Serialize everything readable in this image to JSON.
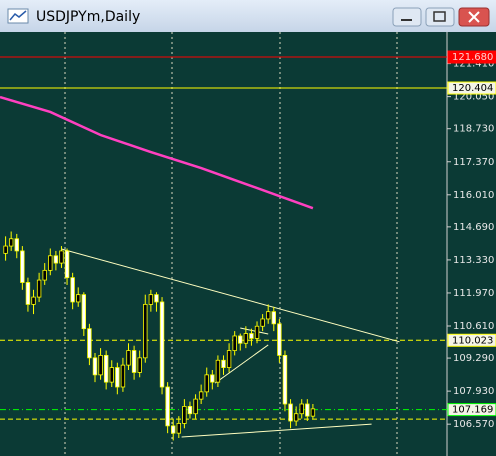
{
  "window": {
    "title": "USDJPYm,Daily"
  },
  "chart_data": {
    "type": "candlestick",
    "xlim": [
      -1,
      79
    ],
    "ylim": [
      105.26,
      122.71
    ],
    "yticks": [
      {
        "value": 121.41,
        "label": "121.410"
      },
      {
        "value": 120.05,
        "label": "120.050"
      },
      {
        "value": 118.73,
        "label": "118.730"
      },
      {
        "value": 117.37,
        "label": "117.370"
      },
      {
        "value": 116.01,
        "label": "116.010"
      },
      {
        "value": 114.69,
        "label": "114.690"
      },
      {
        "value": 113.33,
        "label": "113.330"
      },
      {
        "value": 111.97,
        "label": "111.970"
      },
      {
        "value": 110.61,
        "label": "110.610"
      },
      {
        "value": 109.29,
        "label": "109.290"
      },
      {
        "value": 107.93,
        "label": "107.930"
      },
      {
        "value": 106.57,
        "label": "106.570"
      }
    ],
    "candle_color": "#ffff00",
    "open": [
      113.6,
      113.9,
      114.2,
      113.7,
      112.4,
      111.5,
      111.8,
      112.5,
      112.9,
      113.5,
      113.2,
      113.7,
      112.6,
      111.6,
      111.9,
      110.5,
      109.3,
      108.6,
      109.4,
      108.3,
      108.9,
      108.1,
      109.0,
      109.6,
      108.7,
      109.3,
      111.5,
      111.9,
      111.6,
      108.1,
      106.5,
      106.2,
      106.6,
      107.3,
      107.0,
      107.6,
      107.9,
      108.6,
      108.3,
      109.2,
      108.9,
      109.6,
      110.2,
      109.9,
      110.3,
      110.1,
      110.6,
      110.9,
      111.2,
      110.7,
      109.4,
      107.4,
      106.7,
      107.0,
      107.4,
      106.9
    ],
    "high": [
      114.3,
      114.5,
      114.4,
      113.9,
      112.6,
      112.1,
      112.8,
      113.2,
      113.8,
      113.7,
      113.9,
      113.8,
      112.8,
      112.2,
      112.0,
      110.7,
      109.5,
      109.7,
      109.6,
      109.2,
      109.1,
      109.3,
      109.9,
      109.8,
      109.6,
      111.9,
      112.1,
      112.0,
      111.8,
      108.3,
      106.8,
      106.9,
      107.6,
      107.5,
      107.8,
      108.2,
      108.9,
      108.8,
      109.4,
      109.4,
      109.9,
      110.4,
      110.3,
      110.6,
      110.5,
      110.8,
      111.1,
      111.5,
      111.4,
      110.9,
      109.6,
      107.6,
      107.3,
      107.6,
      107.6,
      107.4
    ],
    "low": [
      113.3,
      113.7,
      113.4,
      112.1,
      111.2,
      111.1,
      111.6,
      112.3,
      112.7,
      112.9,
      113.0,
      112.3,
      111.3,
      111.4,
      110.2,
      109.0,
      108.3,
      108.4,
      108.0,
      108.1,
      107.8,
      107.9,
      108.8,
      108.4,
      108.5,
      109.1,
      111.2,
      111.2,
      107.8,
      106.2,
      105.9,
      106.0,
      106.4,
      106.8,
      106.8,
      107.4,
      107.7,
      108.0,
      108.1,
      108.6,
      108.7,
      109.4,
      109.6,
      109.7,
      109.8,
      109.9,
      110.4,
      110.7,
      110.4,
      109.1,
      107.1,
      106.4,
      106.5,
      106.8,
      106.7,
      106.8
    ],
    "close": [
      113.9,
      114.2,
      113.7,
      112.4,
      111.5,
      111.8,
      112.5,
      112.9,
      113.5,
      113.2,
      113.7,
      112.6,
      111.6,
      111.9,
      110.5,
      109.3,
      108.6,
      109.4,
      108.3,
      108.9,
      108.1,
      109.0,
      109.6,
      108.7,
      109.3,
      111.5,
      111.9,
      111.6,
      108.1,
      106.5,
      106.2,
      106.6,
      107.3,
      107.0,
      107.6,
      107.9,
      108.6,
      108.3,
      109.2,
      108.9,
      109.6,
      110.2,
      109.9,
      110.3,
      110.1,
      110.6,
      110.9,
      111.2,
      110.7,
      109.4,
      107.4,
      106.7,
      107.0,
      107.4,
      106.9,
      107.2
    ],
    "moving_average": {
      "color": "#ff40c0",
      "x": [
        -1,
        8,
        17,
        26,
        35,
        44,
        55
      ],
      "values": [
        120.03,
        119.42,
        118.47,
        117.77,
        117.11,
        116.37,
        115.46
      ]
    },
    "trendlines": [
      {
        "color": "#ffffc0",
        "x": [
          10,
          70.5
        ],
        "values": [
          113.78,
          109.96
        ]
      },
      {
        "color": "#ffffc0",
        "x": [
          31.5,
          65.5
        ],
        "values": [
          106.04,
          106.57
        ]
      },
      {
        "color": "#ffffc0",
        "x": [
          37.5,
          47
        ],
        "values": [
          108.26,
          109.83
        ]
      },
      {
        "color": "#ffffc0",
        "x": [
          42,
          47
        ],
        "values": [
          110.53,
          110.28
        ]
      }
    ],
    "levels": [
      {
        "value": 121.68,
        "label": "121.680",
        "color": "#ff0000",
        "style": "solid"
      },
      {
        "value": 120.404,
        "label": "120.404",
        "color": "#ffff00",
        "style": "solid"
      },
      {
        "value": 110.023,
        "label": "110.023",
        "color": "#ffff00",
        "style": "dash"
      },
      {
        "value": 107.169,
        "label": "107.169",
        "color": "#00ff00",
        "style": "dashdot"
      },
      {
        "value": 106.78,
        "color": "#ffff00",
        "style": "dash"
      }
    ]
  }
}
